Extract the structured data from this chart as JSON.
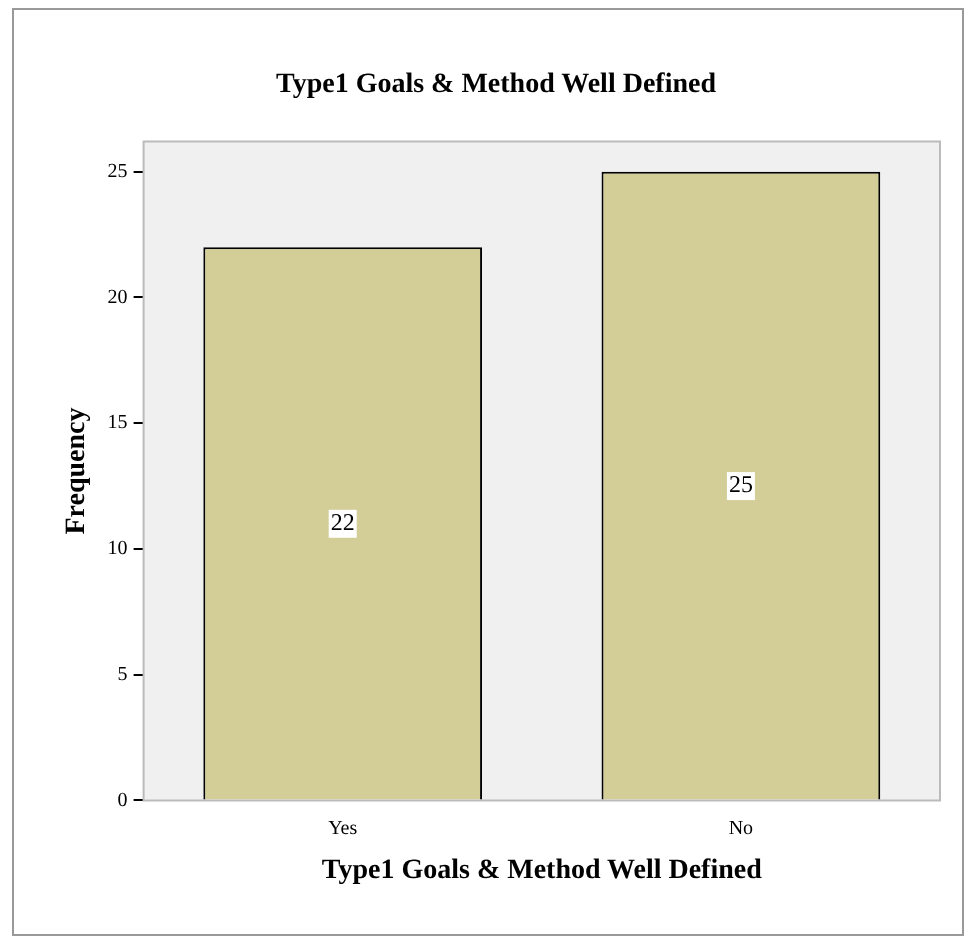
{
  "chart_data": {
    "type": "bar",
    "title": "Type1 Goals & Method Well Defined",
    "xlabel": "Type1 Goals & Method Well Defined",
    "ylabel": "Frequency",
    "categories": [
      "Yes",
      "No"
    ],
    "values": [
      22,
      25
    ],
    "color": "#d3cd97",
    "ylim": [
      0,
      26.2
    ],
    "yticks": [
      0,
      5,
      10,
      15,
      20,
      25
    ],
    "grid": false,
    "legend": false,
    "data_labels": true
  }
}
